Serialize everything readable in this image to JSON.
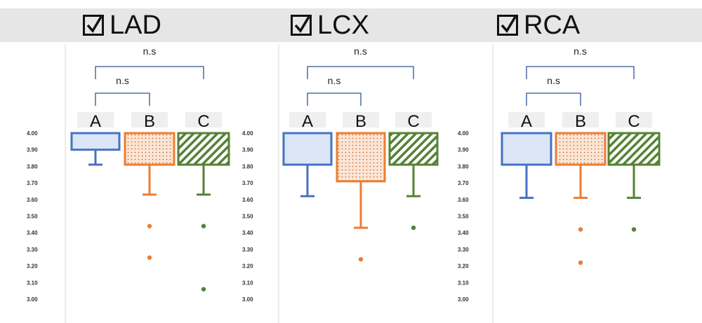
{
  "panels": [
    {
      "title": "LAD"
    },
    {
      "title": "LCX"
    },
    {
      "title": "RCA"
    }
  ],
  "colors": {
    "A": "#4472c4",
    "A_fill": "#dbe5f5",
    "B": "#ed7d31",
    "B_fill": "#fbe5d6",
    "C": "#548235",
    "C_fill": "#ffffff",
    "bracket": "#2e5597",
    "header_bg": "#e6e6e6"
  },
  "chart_data": [
    {
      "type": "box",
      "title": "LAD",
      "yticks": [
        "4.00",
        "3.90",
        "3.80",
        "3.70",
        "3.60",
        "3.50",
        "3.40",
        "3.30",
        "3.20",
        "3.10",
        "3.00"
      ],
      "ylim": [
        3.0,
        4.0
      ],
      "categories": [
        "A",
        "B",
        "C"
      ],
      "boxes": [
        {
          "name": "A",
          "q1": 3.9,
          "q3": 4.0,
          "whisker_low": 3.81,
          "whisker_high": 4.0,
          "outliers": []
        },
        {
          "name": "B",
          "q1": 3.81,
          "q3": 4.0,
          "whisker_low": 3.63,
          "whisker_high": 4.0,
          "outliers": [
            3.44,
            3.25
          ]
        },
        {
          "name": "C",
          "q1": 3.81,
          "q3": 4.0,
          "whisker_low": 3.63,
          "whisker_high": 4.0,
          "outliers": [
            3.44,
            3.06
          ]
        }
      ],
      "comparisons": [
        {
          "groups": [
            "A",
            "C"
          ],
          "label": "n.s"
        },
        {
          "groups": [
            "A",
            "B"
          ],
          "label": "n.s"
        }
      ]
    },
    {
      "type": "box",
      "title": "LCX",
      "yticks": [
        "4.00",
        "3.90",
        "3.80",
        "3.70",
        "3.60",
        "3.50",
        "3.40",
        "3.30",
        "3.20",
        "3.10",
        "3.00"
      ],
      "ylim": [
        3.0,
        4.0
      ],
      "categories": [
        "A",
        "B",
        "C"
      ],
      "boxes": [
        {
          "name": "A",
          "q1": 3.81,
          "q3": 4.0,
          "whisker_low": 3.62,
          "whisker_high": 4.0,
          "outliers": []
        },
        {
          "name": "B",
          "q1": 3.71,
          "q3": 4.0,
          "whisker_low": 3.43,
          "whisker_high": 4.0,
          "outliers": [
            3.24
          ]
        },
        {
          "name": "C",
          "q1": 3.81,
          "q3": 4.0,
          "whisker_low": 3.62,
          "whisker_high": 4.0,
          "outliers": [
            3.43
          ]
        }
      ],
      "comparisons": [
        {
          "groups": [
            "A",
            "C"
          ],
          "label": "n.s"
        },
        {
          "groups": [
            "A",
            "B"
          ],
          "label": "n.s"
        }
      ]
    },
    {
      "type": "box",
      "title": "RCA",
      "yticks": [
        "4.00",
        "3.90",
        "3.80",
        "3.70",
        "3.60",
        "3.50",
        "3.40",
        "3.30",
        "3.20",
        "3.10",
        "3.00"
      ],
      "ylim": [
        3.0,
        4.0
      ],
      "categories": [
        "A",
        "B",
        "C"
      ],
      "boxes": [
        {
          "name": "A",
          "q1": 3.81,
          "q3": 4.0,
          "whisker_low": 3.61,
          "whisker_high": 4.0,
          "outliers": []
        },
        {
          "name": "B",
          "q1": 3.81,
          "q3": 4.0,
          "whisker_low": 3.61,
          "whisker_high": 4.0,
          "outliers": [
            3.42,
            3.22
          ]
        },
        {
          "name": "C",
          "q1": 3.81,
          "q3": 4.0,
          "whisker_low": 3.61,
          "whisker_high": 4.0,
          "outliers": [
            3.42
          ]
        }
      ],
      "comparisons": [
        {
          "groups": [
            "A",
            "C"
          ],
          "label": "n.s"
        },
        {
          "groups": [
            "A",
            "B"
          ],
          "label": "n.s"
        }
      ]
    }
  ]
}
